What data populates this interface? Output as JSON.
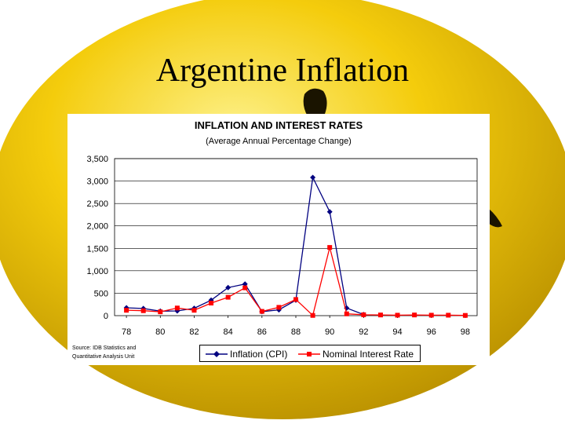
{
  "slide": {
    "title": "Argentine Inflation"
  },
  "colors": {
    "background_gold": "#f4cc0c",
    "background_highlight": "#fdf18a",
    "background_shadow": "#b88f00",
    "inflation_series": "#000080",
    "interest_series": "#ff0000"
  },
  "chart_data": {
    "type": "line",
    "title": "INFLATION AND INTEREST RATES",
    "subtitle": "(Average Annual Percentage Change)",
    "x": [
      78,
      79,
      80,
      81,
      82,
      83,
      84,
      85,
      86,
      87,
      88,
      89,
      90,
      91,
      92,
      93,
      94,
      95,
      96,
      97,
      98
    ],
    "x_tick_labels": [
      "78",
      "80",
      "82",
      "84",
      "86",
      "88",
      "90",
      "92",
      "94",
      "96",
      "98"
    ],
    "y_tick_labels": [
      "0",
      "500",
      "1,000",
      "1,500",
      "2,000",
      "2,500",
      "3,000",
      "3,500"
    ],
    "y_ticks": [
      0,
      500,
      1000,
      1500,
      2000,
      2500,
      3000,
      3500
    ],
    "ylim": [
      0,
      3500
    ],
    "xlim": [
      77.3,
      98.7
    ],
    "grid": "horizontal",
    "legend_position": "bottom",
    "series": [
      {
        "name": "Inflation (CPI)",
        "marker": "diamond",
        "x": [
          78,
          79,
          80,
          81,
          82,
          83,
          84,
          85,
          86,
          87,
          88,
          89,
          90,
          91,
          92
        ],
        "values": [
          175,
          160,
          100,
          105,
          165,
          345,
          625,
          705,
          90,
          130,
          345,
          3080,
          2315,
          170,
          25
        ]
      },
      {
        "name": "Nominal Interest Rate",
        "marker": "square",
        "x": [
          78,
          79,
          80,
          81,
          82,
          83,
          84,
          85,
          86,
          87,
          88,
          89,
          90,
          91,
          92,
          93,
          94,
          95,
          96,
          97,
          98
        ],
        "values": [
          120,
          110,
          85,
          170,
          120,
          280,
          410,
          620,
          95,
          185,
          360,
          5,
          1520,
          40,
          20,
          15,
          10,
          15,
          10,
          10,
          5
        ]
      }
    ],
    "source_lines": [
      "Source: IDB Statistics and",
      "Quantitative Analysis Unit"
    ]
  }
}
